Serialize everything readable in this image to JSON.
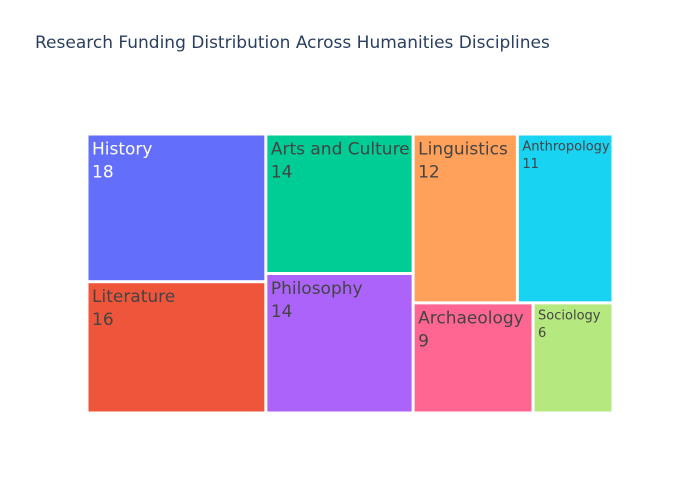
{
  "chart_data": {
    "type": "treemap",
    "title": "Research Funding Distribution Across Humanities Disciplines",
    "items": [
      {
        "label": "History",
        "value": 18,
        "color": "#636efa",
        "text_color": "#ffffff"
      },
      {
        "label": "Literature",
        "value": 16,
        "color": "#ef553b",
        "text_color": "#444444"
      },
      {
        "label": "Arts and Culture",
        "value": 14,
        "color": "#00cc96",
        "text_color": "#444444"
      },
      {
        "label": "Philosophy",
        "value": 14,
        "color": "#ab63fa",
        "text_color": "#444444"
      },
      {
        "label": "Linguistics",
        "value": 12,
        "color": "#ffa15a",
        "text_color": "#444444"
      },
      {
        "label": "Anthropology",
        "value": 11,
        "color": "#19d3f3",
        "text_color": "#444444"
      },
      {
        "label": "Archaeology",
        "value": 9,
        "color": "#ff6692",
        "text_color": "#444444"
      },
      {
        "label": "Sociology",
        "value": 6,
        "color": "#b6e880",
        "text_color": "#444444"
      }
    ]
  }
}
